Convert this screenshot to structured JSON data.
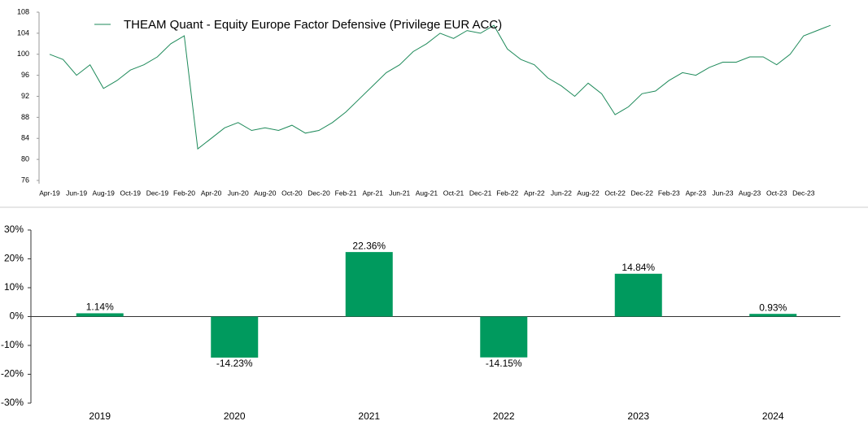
{
  "chart_data": [
    {
      "type": "line",
      "categories": [
        "Apr-19",
        null,
        "Jun-19",
        null,
        "Aug-19",
        null,
        "Oct-19",
        null,
        "Dec-19",
        null,
        "Feb-20",
        null,
        "Apr-20",
        null,
        "Jun-20",
        null,
        "Aug-20",
        null,
        "Oct-20",
        null,
        "Dec-20",
        null,
        "Feb-21",
        null,
        "Apr-21",
        null,
        "Jun-21",
        null,
        "Aug-21",
        null,
        "Oct-21",
        null,
        "Dec-21",
        null,
        "Feb-22",
        null,
        "Apr-22",
        null,
        "Jun-22",
        null,
        "Aug-22",
        null,
        "Oct-22",
        null,
        "Dec-22",
        null,
        "Feb-23",
        null,
        "Apr-23",
        null,
        "Jun-23",
        null,
        "Aug-23",
        null,
        "Oct-23",
        null,
        "Dec-23",
        null,
        null
      ],
      "series": [
        {
          "name": "THEAM Quant - Equity Europe Factor Defensive (Privilege EUR ACC)",
          "color": "#1e8a5a",
          "values": [
            100,
            99,
            96,
            98,
            93.5,
            95,
            97,
            98,
            99.5,
            102,
            103.5,
            82,
            84,
            86,
            87,
            85.5,
            86,
            85.5,
            86.5,
            85,
            85.5,
            87,
            89,
            91.5,
            94,
            96.5,
            98,
            100.5,
            102,
            104,
            103,
            104.5,
            104,
            105.5,
            101,
            99,
            98,
            95.5,
            94,
            92,
            94.5,
            92.5,
            88.5,
            90,
            92.5,
            93,
            95,
            96.5,
            96,
            97.5,
            98.5,
            98.5,
            99.5,
            99.5,
            98,
            100,
            103.5,
            104.5,
            105.5
          ]
        }
      ],
      "ylim": [
        76,
        108
      ],
      "yticks": [
        76,
        80,
        84,
        88,
        92,
        96,
        100,
        104,
        108
      ],
      "legend": "top"
    },
    {
      "type": "bar",
      "categories": [
        "2019",
        "2020",
        "2021",
        "2022",
        "2023",
        "2024"
      ],
      "values": [
        1.14,
        -14.23,
        22.36,
        -14.15,
        14.84,
        0.93
      ],
      "value_labels": [
        "1.14%",
        "-14.23%",
        "22.36%",
        "-14.15%",
        "14.84%",
        "0.93%"
      ],
      "color": "#009a5e",
      "ylim": [
        -30,
        30
      ],
      "yticks": [
        {
          "value": -30,
          "label": "-30%"
        },
        {
          "value": -20,
          "label": "-20%"
        },
        {
          "value": -10,
          "label": "-10%"
        },
        {
          "value": 0,
          "label": "0%"
        },
        {
          "value": 10,
          "label": "10%"
        },
        {
          "value": 20,
          "label": "20%"
        },
        {
          "value": 30,
          "label": "30%"
        }
      ]
    }
  ]
}
